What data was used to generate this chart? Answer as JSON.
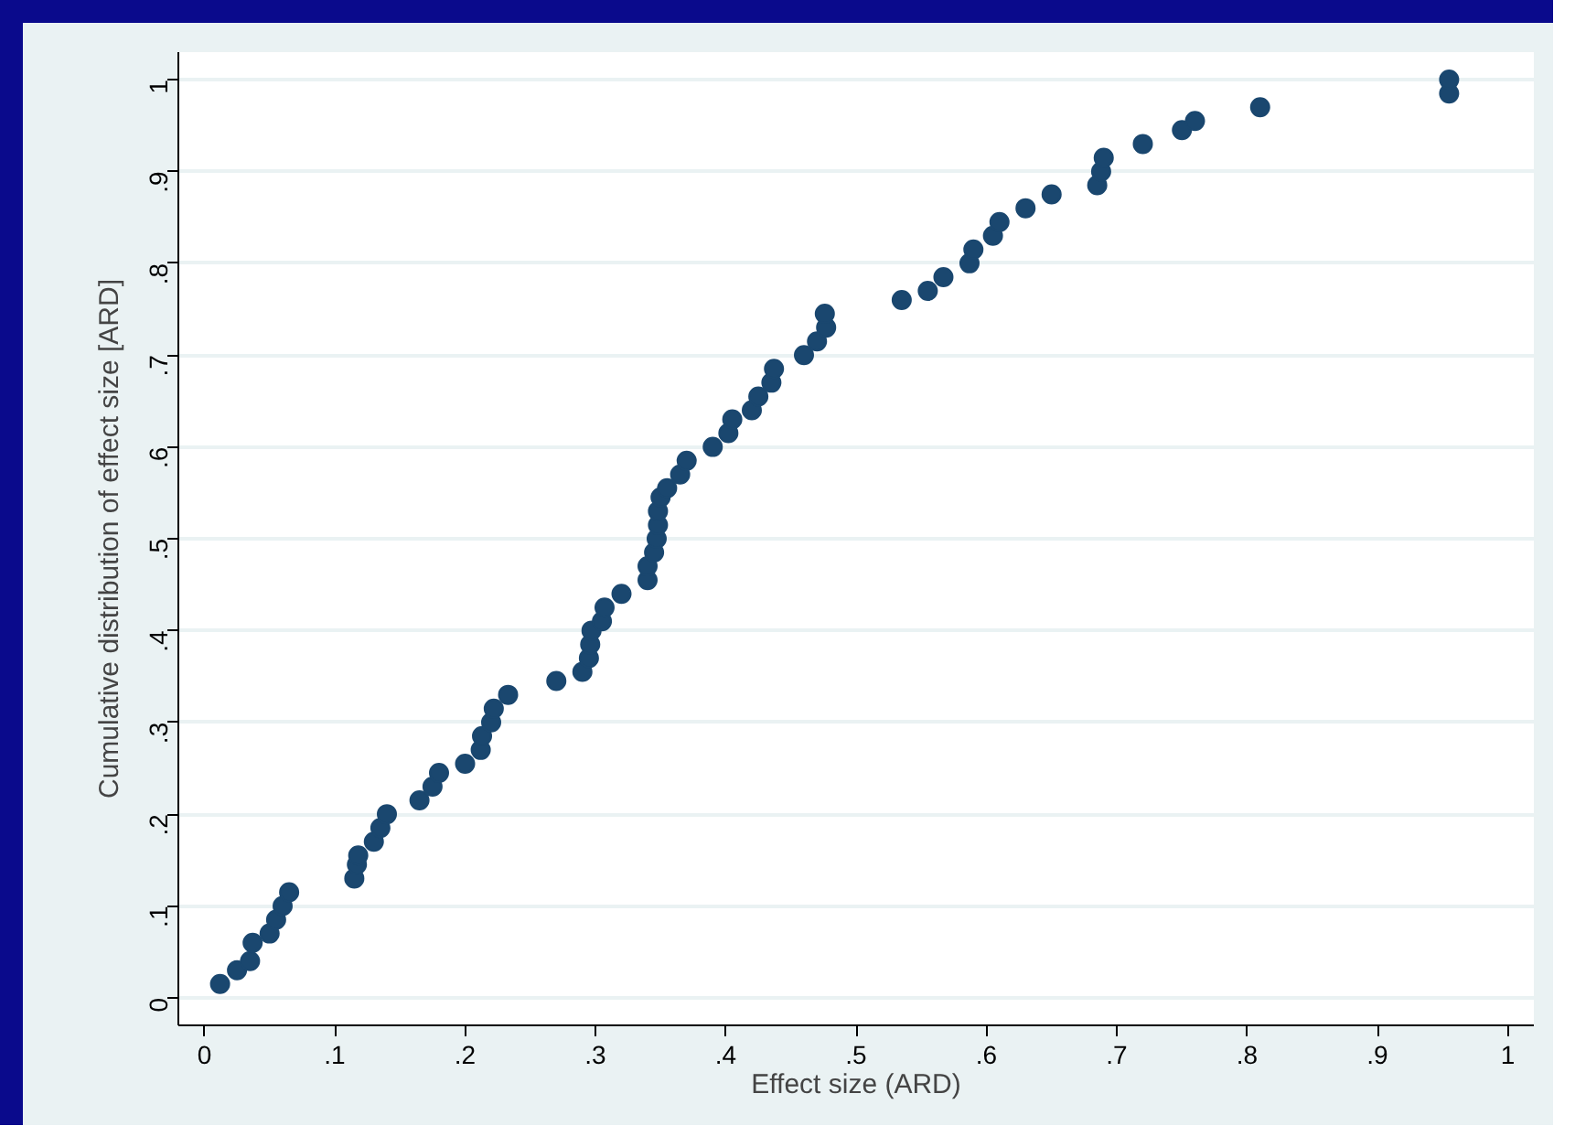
{
  "chart_data": {
    "type": "scatter",
    "xlabel": "Effect size (ARD)",
    "ylabel": "Cumulative distribution of effect size [ARD]",
    "marker": "circle",
    "grid": "y",
    "xlim": [
      -0.02,
      1.02
    ],
    "ylim": [
      -0.03,
      1.03
    ],
    "xticks": [
      0,
      {
        "value": 0.1,
        "label": ".1"
      },
      {
        "value": 0.2,
        "label": ".2"
      },
      {
        "value": 0.3,
        "label": ".3"
      },
      {
        "value": 0.4,
        "label": ".4"
      },
      {
        "value": 0.5,
        "label": ".5"
      },
      {
        "value": 0.6,
        "label": ".6"
      },
      {
        "value": 0.7,
        "label": ".7"
      },
      {
        "value": 0.8,
        "label": ".8"
      },
      {
        "value": 0.9,
        "label": ".9"
      },
      1
    ],
    "yticks": [
      0,
      {
        "value": 0.1,
        "label": ".1"
      },
      {
        "value": 0.2,
        "label": ".2"
      },
      {
        "value": 0.3,
        "label": ".3"
      },
      {
        "value": 0.4,
        "label": ".4"
      },
      {
        "value": 0.5,
        "label": ".5"
      },
      {
        "value": 0.6,
        "label": ".6"
      },
      {
        "value": 0.7,
        "label": ".7"
      },
      {
        "value": 0.8,
        "label": ".8"
      },
      {
        "value": 0.9,
        "label": ".9"
      },
      1
    ],
    "series": [
      {
        "color": "#1a476f",
        "x": [
          0.012,
          0.025,
          0.035,
          0.037,
          0.05,
          0.055,
          0.06,
          0.065,
          0.115,
          0.117,
          0.118,
          0.13,
          0.135,
          0.14,
          0.165,
          0.175,
          0.18,
          0.2,
          0.212,
          0.213,
          0.22,
          0.222,
          0.233,
          0.27,
          0.29,
          0.295,
          0.296,
          0.297,
          0.305,
          0.307,
          0.32,
          0.34,
          0.34,
          0.345,
          0.347,
          0.348,
          0.348,
          0.35,
          0.355,
          0.365,
          0.37,
          0.39,
          0.402,
          0.405,
          0.42,
          0.425,
          0.435,
          0.437,
          0.46,
          0.47,
          0.477,
          0.476,
          0.535,
          0.555,
          0.567,
          0.587,
          0.59,
          0.605,
          0.61,
          0.63,
          0.65,
          0.685,
          0.688,
          0.69,
          0.72,
          0.75,
          0.76,
          0.81,
          0.955,
          0.955
        ],
        "values": [
          0.015,
          0.03,
          0.04,
          0.06,
          0.07,
          0.085,
          0.1,
          0.115,
          0.13,
          0.145,
          0.155,
          0.17,
          0.185,
          0.2,
          0.215,
          0.23,
          0.245,
          0.255,
          0.27,
          0.285,
          0.3,
          0.315,
          0.33,
          0.345,
          0.355,
          0.37,
          0.385,
          0.4,
          0.41,
          0.425,
          0.44,
          0.455,
          0.47,
          0.485,
          0.5,
          0.515,
          0.53,
          0.545,
          0.555,
          0.57,
          0.585,
          0.6,
          0.615,
          0.63,
          0.64,
          0.655,
          0.67,
          0.685,
          0.7,
          0.715,
          0.73,
          0.745,
          0.76,
          0.77,
          0.785,
          0.8,
          0.815,
          0.83,
          0.845,
          0.86,
          0.875,
          0.885,
          0.9,
          0.915,
          0.93,
          0.945,
          0.955,
          0.97,
          0.985,
          1.0
        ]
      }
    ]
  }
}
